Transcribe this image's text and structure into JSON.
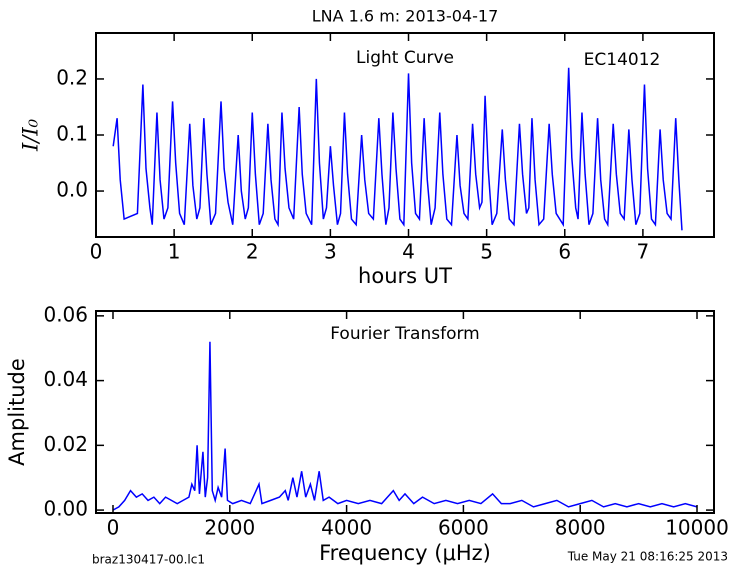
{
  "chart_data": [
    {
      "type": "line",
      "title": "LNA 1.6 m:  2013-04-17",
      "xlabel": "hours UT",
      "ylabel": "I/I₀",
      "annotations": [
        "Light Curve",
        "EC14012"
      ],
      "xlim": [
        0,
        7.91
      ],
      "ylim": [
        -0.082,
        0.282
      ],
      "xticks": [
        0,
        1,
        2,
        3,
        4,
        5,
        6,
        7
      ],
      "yticks": [
        {
          "value": 0,
          "label": "0.0"
        },
        0.1,
        0.2
      ],
      "x": [
        0.22,
        0.27,
        0.31,
        0.36,
        0.53,
        0.6,
        0.64,
        0.69,
        0.72,
        0.78,
        0.82,
        0.87,
        0.92,
        0.98,
        1.02,
        1.07,
        1.13,
        1.2,
        1.24,
        1.29,
        1.33,
        1.38,
        1.42,
        1.47,
        1.53,
        1.6,
        1.64,
        1.69,
        1.75,
        1.82,
        1.86,
        1.91,
        1.95,
        2.0,
        2.04,
        2.09,
        2.14,
        2.2,
        2.24,
        2.29,
        2.33,
        2.38,
        2.42,
        2.47,
        2.53,
        2.6,
        2.64,
        2.69,
        2.76,
        2.82,
        2.86,
        2.91,
        2.95,
        3.0,
        3.04,
        3.09,
        3.13,
        3.18,
        3.22,
        3.27,
        3.33,
        3.4,
        3.44,
        3.49,
        3.55,
        3.62,
        3.66,
        3.71,
        3.75,
        3.8,
        3.84,
        3.89,
        3.94,
        4.0,
        4.04,
        4.09,
        4.14,
        4.2,
        4.24,
        4.29,
        4.34,
        4.4,
        4.44,
        4.49,
        4.55,
        4.62,
        4.66,
        4.71,
        4.76,
        4.82,
        4.86,
        4.91,
        4.94,
        4.98,
        5.02,
        5.07,
        5.13,
        5.2,
        5.24,
        5.29,
        5.35,
        5.42,
        5.46,
        5.51,
        5.54,
        5.58,
        5.62,
        5.67,
        5.73,
        5.8,
        5.84,
        5.89,
        5.98,
        6.05,
        6.09,
        6.14,
        6.17,
        6.22,
        6.26,
        6.31,
        6.36,
        6.42,
        6.46,
        6.51,
        6.55,
        6.62,
        6.66,
        6.71,
        6.76,
        6.82,
        6.86,
        6.91,
        6.96,
        7.02,
        7.06,
        7.11,
        7.16,
        7.22,
        7.26,
        7.31,
        7.36,
        7.42,
        7.46,
        7.5
      ],
      "series": [
        {
          "color": "#0000ff",
          "values": [
            0.08,
            0.13,
            0.02,
            -0.05,
            -0.04,
            0.19,
            0.04,
            -0.03,
            -0.06,
            0.14,
            0.02,
            -0.05,
            -0.03,
            0.16,
            0.05,
            -0.04,
            -0.06,
            0.12,
            0.01,
            -0.05,
            -0.03,
            0.13,
            0.03,
            -0.06,
            -0.04,
            0.16,
            0.04,
            -0.02,
            -0.06,
            0.1,
            0.0,
            -0.05,
            -0.03,
            0.14,
            0.03,
            -0.06,
            -0.04,
            0.12,
            0.02,
            -0.05,
            -0.06,
            0.14,
            0.04,
            -0.03,
            -0.05,
            0.15,
            0.03,
            -0.04,
            -0.06,
            0.2,
            0.05,
            -0.05,
            -0.03,
            0.08,
            0.01,
            -0.06,
            -0.04,
            0.14,
            0.03,
            -0.05,
            -0.06,
            0.1,
            0.02,
            -0.04,
            -0.05,
            0.13,
            0.03,
            -0.06,
            -0.03,
            0.14,
            0.04,
            -0.05,
            -0.06,
            0.21,
            0.05,
            -0.04,
            -0.05,
            0.13,
            0.02,
            -0.06,
            -0.03,
            0.14,
            0.03,
            -0.05,
            -0.06,
            0.1,
            0.01,
            -0.04,
            -0.05,
            0.12,
            0.03,
            -0.03,
            -0.02,
            0.17,
            0.04,
            -0.06,
            -0.04,
            0.11,
            0.02,
            -0.05,
            -0.06,
            0.12,
            0.03,
            -0.04,
            -0.03,
            0.13,
            0.02,
            -0.06,
            -0.05,
            0.12,
            0.03,
            -0.04,
            -0.06,
            0.22,
            0.06,
            -0.03,
            -0.05,
            0.14,
            0.03,
            -0.06,
            -0.04,
            0.13,
            0.02,
            -0.05,
            -0.06,
            0.12,
            0.03,
            -0.04,
            -0.05,
            0.11,
            0.02,
            -0.06,
            -0.04,
            0.19,
            0.04,
            -0.05,
            -0.06,
            0.11,
            0.02,
            -0.04,
            -0.05,
            0.13,
            0.02,
            -0.07
          ]
        }
      ]
    },
    {
      "type": "line",
      "xlabel": "Frequency (μHz)",
      "ylabel": "Amplitude",
      "annotations": [
        "Fourier Transform"
      ],
      "xlim": [
        -291,
        10291
      ],
      "ylim": [
        -0.0009,
        0.0615
      ],
      "xticks": [
        0,
        2000,
        4000,
        6000,
        8000,
        10000
      ],
      "yticks": [
        {
          "value": 0,
          "label": "0.00"
        },
        {
          "value": 0.02,
          "label": "0.02"
        },
        {
          "value": 0.04,
          "label": "0.04"
        },
        {
          "value": 0.06,
          "label": "0.06"
        }
      ],
      "x": [
        0,
        100,
        200,
        300,
        400,
        500,
        600,
        700,
        800,
        900,
        1000,
        1100,
        1200,
        1300,
        1350,
        1400,
        1440,
        1480,
        1540,
        1580,
        1620,
        1660,
        1700,
        1750,
        1800,
        1860,
        1920,
        1960,
        2050,
        2200,
        2350,
        2500,
        2550,
        2700,
        2850,
        2950,
        3000,
        3080,
        3150,
        3230,
        3300,
        3380,
        3450,
        3530,
        3600,
        3700,
        3850,
        4000,
        4200,
        4400,
        4600,
        4800,
        4900,
        5000,
        5150,
        5300,
        5500,
        5700,
        5900,
        6100,
        6300,
        6500,
        6650,
        6800,
        7000,
        7200,
        7400,
        7600,
        7800,
        8000,
        8200,
        8400,
        8600,
        8800,
        9000,
        9200,
        9400,
        9600,
        9800,
        10000
      ],
      "series": [
        {
          "color": "#0000ff",
          "values": [
            0.0,
            0.001,
            0.003,
            0.006,
            0.004,
            0.005,
            0.003,
            0.004,
            0.002,
            0.004,
            0.003,
            0.002,
            0.003,
            0.004,
            0.008,
            0.006,
            0.02,
            0.005,
            0.018,
            0.004,
            0.01,
            0.052,
            0.006,
            0.003,
            0.007,
            0.004,
            0.019,
            0.003,
            0.002,
            0.003,
            0.002,
            0.008,
            0.002,
            0.003,
            0.004,
            0.006,
            0.003,
            0.01,
            0.004,
            0.012,
            0.004,
            0.008,
            0.003,
            0.012,
            0.003,
            0.004,
            0.002,
            0.003,
            0.002,
            0.003,
            0.002,
            0.006,
            0.003,
            0.005,
            0.002,
            0.004,
            0.002,
            0.003,
            0.002,
            0.003,
            0.002,
            0.005,
            0.002,
            0.002,
            0.003,
            0.001,
            0.002,
            0.003,
            0.001,
            0.002,
            0.003,
            0.001,
            0.002,
            0.001,
            0.002,
            0.001,
            0.002,
            0.001,
            0.002,
            0.001
          ]
        }
      ]
    }
  ],
  "footer": {
    "left": "braz130417-00.lc1",
    "right": "Tue May 21 08:16:25 2013"
  }
}
